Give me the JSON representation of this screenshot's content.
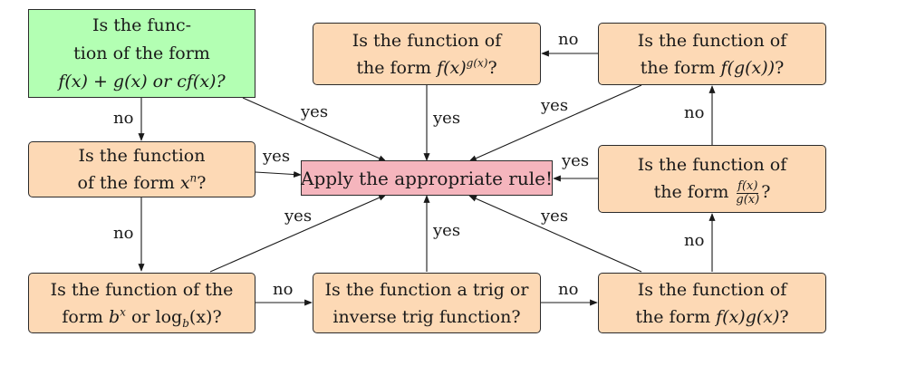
{
  "nodes": {
    "sum_rule": {
      "line1": "Is the func-",
      "line2": "tion of the form",
      "line3": "f(x) + g(x) or cf(x)?"
    },
    "power": {
      "line1": "Is the function",
      "line2_text": "of the form ",
      "line2_math": "x",
      "line2_sup": "n",
      "line2_end": "?"
    },
    "exp_log": {
      "line1": "Is the function of the",
      "line2_text": "form ",
      "line2_base": "b",
      "line2_sup": "x",
      "line2_mid": " or log",
      "line2_sub": "b",
      "line2_end": "(x)?"
    },
    "trig": {
      "line1": "Is the function a trig or",
      "line2": "inverse trig function?"
    },
    "apply": {
      "text": "Apply the appropriate rule!"
    },
    "exp_power": {
      "line1": "Is the function of",
      "line2_text": "the form ",
      "line2_math": "f(x)",
      "line2_sup": "g(x)",
      "line2_end": "?"
    },
    "chain": {
      "line1": "Is the function of",
      "line2_text": "the form ",
      "line2_math": "f(g(x))",
      "line2_end": "?"
    },
    "quotient": {
      "line1": "Is the function of",
      "line2_text": "the form ",
      "num": "f(x)",
      "den": "g(x)",
      "line2_end": "?"
    },
    "product": {
      "line1": "Is the function of",
      "line2_text": "the form ",
      "line2_math": "f(x)g(x)",
      "line2_end": "?"
    }
  },
  "edge_labels": {
    "sum_to_power_no": "no",
    "power_to_exp_no": "no",
    "exp_to_trig_no": "no",
    "trig_to_product_no": "no",
    "product_to_quotient_no": "no",
    "quotient_to_chain_no": "no",
    "chain_to_exppower_no": "no",
    "sum_yes": "yes",
    "power_yes": "yes",
    "exp_yes": "yes",
    "trig_yes": "yes",
    "product_yes": "yes",
    "quotient_yes": "yes",
    "chain_yes": "yes",
    "exppower_yes": "yes"
  },
  "colors": {
    "start_fill": "#b3ffb3",
    "question_fill": "#fdd9b5",
    "goal_fill": "#f5b5bd",
    "stroke": "#2b2b2b"
  }
}
